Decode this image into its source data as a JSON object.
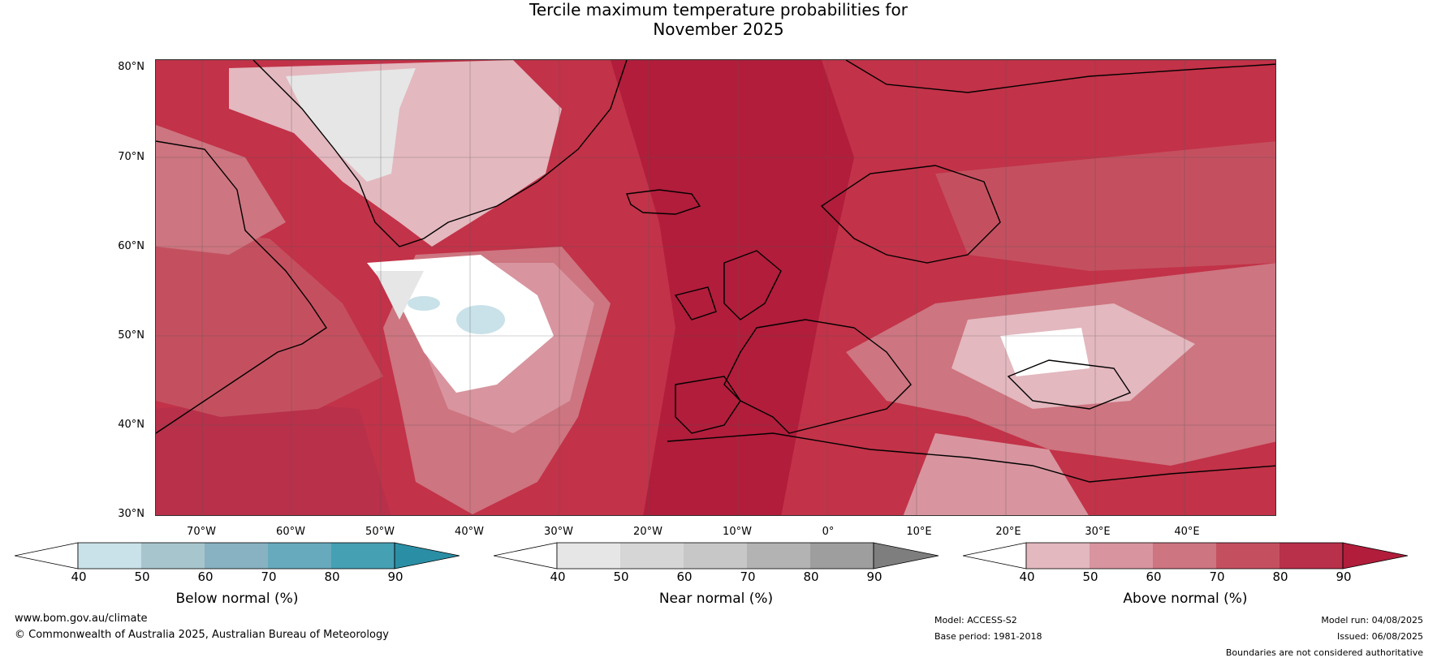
{
  "title": {
    "line1": "Tercile maximum temperature probabilities for",
    "line2": "November 2025"
  },
  "map": {
    "lat_labels": [
      "80°N",
      "70°N",
      "60°N",
      "50°N",
      "40°N",
      "30°N"
    ],
    "lon_labels": [
      "70°W",
      "60°W",
      "50°W",
      "40°W",
      "30°W",
      "20°W",
      "10°W",
      "0°",
      "10°E",
      "20°E",
      "30°E",
      "40°E"
    ],
    "extent": {
      "lon_min": -72,
      "lon max": 53,
      "lat_min": 30,
      "lat_max": 81
    }
  },
  "colorbars": [
    {
      "id": "below",
      "title": "Below normal (%)",
      "ticks": [
        "40",
        "50",
        "60",
        "70",
        "80",
        "90"
      ],
      "colors": [
        "#ffffff",
        "#c9e1e9",
        "#a7c5cc",
        "#88b2c1",
        "#68aabd",
        "#45a0b4",
        "#2a8fa5"
      ]
    },
    {
      "id": "near",
      "title": "Near normal (%)",
      "ticks": [
        "40",
        "50",
        "60",
        "70",
        "80",
        "90"
      ],
      "colors": [
        "#ffffff",
        "#e6e6e6",
        "#d6d6d6",
        "#c7c7c7",
        "#b3b3b3",
        "#9e9e9e",
        "#7e7e7e"
      ]
    },
    {
      "id": "above",
      "title": "Above normal (%)",
      "ticks": [
        "40",
        "50",
        "60",
        "70",
        "80",
        "90"
      ],
      "colors": [
        "#ffffff",
        "#e3b8bf",
        "#d8959f",
        "#cd7580",
        "#c4505f",
        "#b8304a",
        "#b11d3b"
      ]
    }
  ],
  "footer": {
    "website": "www.bom.gov.au/climate",
    "copyright": "© Commonwealth of Australia 2025, Australian Bureau of Meteorology",
    "model": "Model: ACCESS-S2",
    "base_period": "Base period: 1981-2018",
    "model_run": "Model run: 04/08/2025",
    "issued": "Issued: 06/08/2025",
    "disclaimer": "Boundaries are not considered authoritative"
  }
}
